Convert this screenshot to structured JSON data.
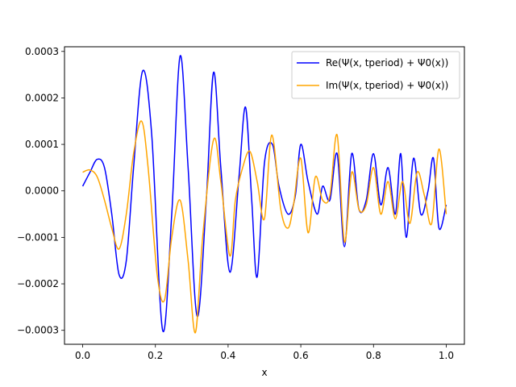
{
  "chart_data": {
    "type": "line",
    "title": "",
    "xlabel": "x",
    "ylabel": "",
    "xlim": [
      -0.05,
      1.05
    ],
    "ylim": [
      -0.00033,
      0.00031
    ],
    "xticks": [
      0.0,
      0.2,
      0.4,
      0.6,
      0.8,
      1.0
    ],
    "xtick_labels": [
      "0.0",
      "0.2",
      "0.4",
      "0.6",
      "0.8",
      "1.0"
    ],
    "yticks": [
      -0.0003,
      -0.0002,
      -0.0001,
      0.0,
      0.0001,
      0.0002,
      0.0003
    ],
    "ytick_labels": [
      "−0.0003",
      "−0.0002",
      "−0.0001",
      "0.0000",
      "0.0001",
      "0.0002",
      "0.0003"
    ],
    "grid": false,
    "legend_position": "top-right",
    "series": [
      {
        "name": "Re(Ψ(x, t_period) + Ψ₀(x))",
        "legend_label": "Re(Ψ(x, tperiod) + Ψ0(x))",
        "color": "#0000ff",
        "points": [
          [
            0.0,
            1e-05
          ],
          [
            0.02,
            4e-05
          ],
          [
            0.04,
            6.8e-05
          ],
          [
            0.06,
            5e-05
          ],
          [
            0.08,
            -5e-05
          ],
          [
            0.1,
            -0.00018
          ],
          [
            0.12,
            -0.00015
          ],
          [
            0.14,
            5e-05
          ],
          [
            0.165,
            0.000258
          ],
          [
            0.19,
            0.00012
          ],
          [
            0.22,
            -0.0003
          ],
          [
            0.245,
            -5e-05
          ],
          [
            0.268,
            0.00029
          ],
          [
            0.29,
            5e-05
          ],
          [
            0.315,
            -0.00027
          ],
          [
            0.34,
            -2e-05
          ],
          [
            0.36,
            0.000255
          ],
          [
            0.38,
            5e-05
          ],
          [
            0.405,
            -0.000175
          ],
          [
            0.43,
            3e-05
          ],
          [
            0.448,
            0.00018
          ],
          [
            0.465,
            -2e-05
          ],
          [
            0.48,
            -0.000185
          ],
          [
            0.5,
            6e-05
          ],
          [
            0.522,
            0.0001
          ],
          [
            0.54,
            1e-05
          ],
          [
            0.565,
            -5e-05
          ],
          [
            0.585,
            -1e-05
          ],
          [
            0.6,
            0.0001
          ],
          [
            0.62,
            2e-05
          ],
          [
            0.645,
            -5e-05
          ],
          [
            0.66,
            1e-05
          ],
          [
            0.68,
            -2e-05
          ],
          [
            0.7,
            8e-05
          ],
          [
            0.72,
            -0.00012
          ],
          [
            0.74,
            8e-05
          ],
          [
            0.76,
            -4e-05
          ],
          [
            0.78,
            -2e-05
          ],
          [
            0.8,
            8e-05
          ],
          [
            0.82,
            -3e-05
          ],
          [
            0.84,
            5e-05
          ],
          [
            0.86,
            -5e-05
          ],
          [
            0.875,
            8e-05
          ],
          [
            0.89,
            -0.0001
          ],
          [
            0.91,
            7e-05
          ],
          [
            0.93,
            -5e-05
          ],
          [
            0.95,
            0.0
          ],
          [
            0.965,
            7e-05
          ],
          [
            0.98,
            -8e-05
          ],
          [
            1.0,
            -3e-05
          ]
        ]
      },
      {
        "name": "Im(Ψ(x, t_period) + Ψ₀(x))",
        "legend_label": "Im(Ψ(x, tperiod) + Ψ0(x))",
        "color": "#ffa500",
        "points": [
          [
            0.0,
            4e-05
          ],
          [
            0.02,
            4.5e-05
          ],
          [
            0.04,
            3e-05
          ],
          [
            0.06,
            -2e-05
          ],
          [
            0.08,
            -8e-05
          ],
          [
            0.1,
            -0.000125
          ],
          [
            0.12,
            -5e-05
          ],
          [
            0.14,
            8e-05
          ],
          [
            0.162,
            0.00015
          ],
          [
            0.18,
            5e-05
          ],
          [
            0.205,
            -0.00018
          ],
          [
            0.225,
            -0.000235
          ],
          [
            0.245,
            -0.0001
          ],
          [
            0.268,
            -2e-05
          ],
          [
            0.29,
            -0.00015
          ],
          [
            0.31,
            -0.000305
          ],
          [
            0.33,
            -0.0001
          ],
          [
            0.36,
            0.00011
          ],
          [
            0.38,
            2e-05
          ],
          [
            0.405,
            -0.00014
          ],
          [
            0.42,
            -2e-05
          ],
          [
            0.44,
            5e-05
          ],
          [
            0.46,
            8.5e-05
          ],
          [
            0.48,
            2e-05
          ],
          [
            0.5,
            -6e-05
          ],
          [
            0.52,
            0.00012
          ],
          [
            0.545,
            -4e-05
          ],
          [
            0.565,
            -8e-05
          ],
          [
            0.58,
            -3e-05
          ],
          [
            0.6,
            7e-05
          ],
          [
            0.62,
            -9e-05
          ],
          [
            0.64,
            3e-05
          ],
          [
            0.66,
            -2e-05
          ],
          [
            0.68,
            -1e-05
          ],
          [
            0.7,
            0.00012
          ],
          [
            0.72,
            -0.00011
          ],
          [
            0.74,
            4e-05
          ],
          [
            0.76,
            -4e-05
          ],
          [
            0.78,
            -3e-05
          ],
          [
            0.8,
            5e-05
          ],
          [
            0.82,
            -5e-05
          ],
          [
            0.84,
            2e-05
          ],
          [
            0.86,
            -6e-05
          ],
          [
            0.88,
            2e-05
          ],
          [
            0.9,
            -7e-05
          ],
          [
            0.92,
            4e-05
          ],
          [
            0.94,
            -1e-05
          ],
          [
            0.96,
            -7e-05
          ],
          [
            0.98,
            9e-05
          ],
          [
            1.0,
            -5e-05
          ]
        ]
      }
    ]
  }
}
